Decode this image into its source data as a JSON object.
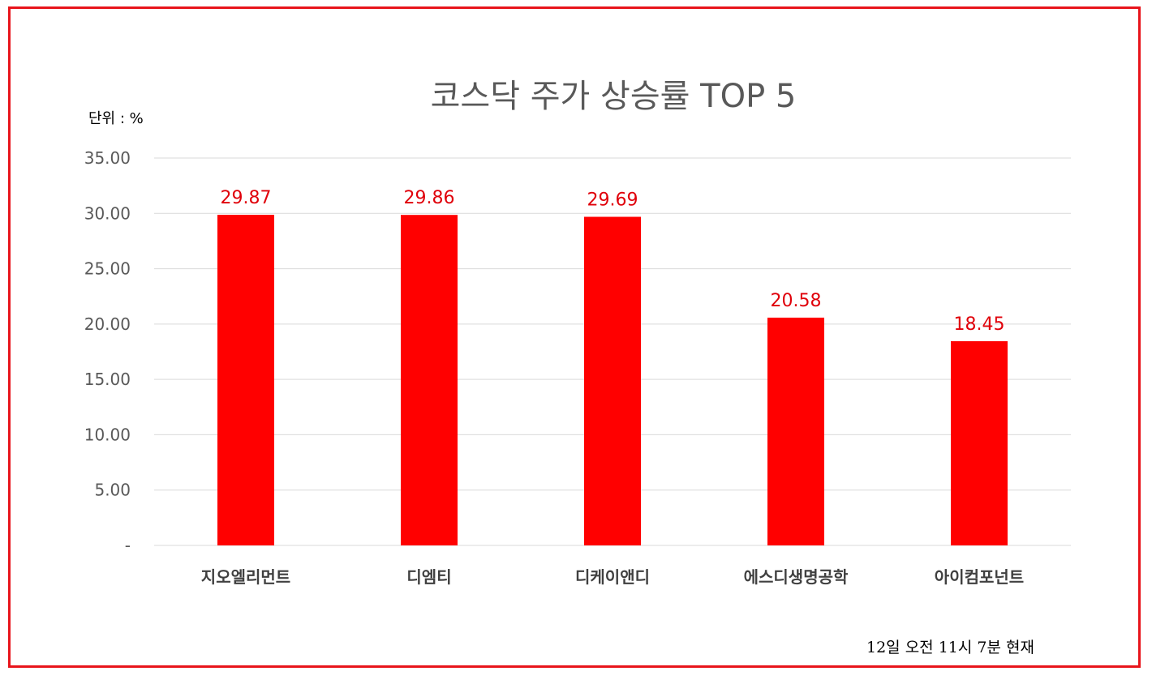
{
  "chart_data": {
    "type": "bar",
    "title": "코스닥 주가 상승률 TOP 5",
    "unit_label": "단위 : %",
    "footnote": "12일  오전 11시 7분 현재",
    "categories": [
      "지오엘리먼트",
      "디엠티",
      "디케이앤디",
      "에스디생명공학",
      "아이컴포넌트"
    ],
    "values": [
      29.87,
      29.86,
      29.69,
      20.58,
      18.45
    ],
    "value_labels": [
      "29.87",
      "29.86",
      "29.69",
      "20.58",
      "18.45"
    ],
    "y_ticks": [
      0,
      5,
      10,
      15,
      20,
      25,
      30,
      35
    ],
    "y_tick_labels": [
      "-",
      "5.00",
      "10.00",
      "15.00",
      "20.00",
      "25.00",
      "30.00",
      "35.00"
    ],
    "ylim": [
      0,
      35
    ],
    "grid": true,
    "legend": "none",
    "bar_color": "#ff0000",
    "label_color": "#e0000a",
    "frame_color": "#e8141b"
  }
}
